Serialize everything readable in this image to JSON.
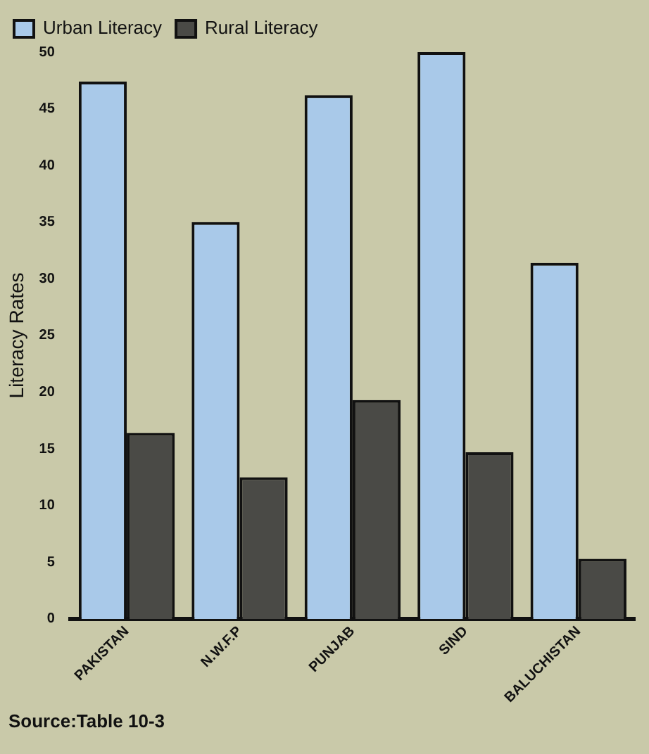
{
  "chart_data": {
    "type": "bar",
    "ylabel": "Literacy Rates",
    "categories": [
      "PAKISTAN",
      "N.W.F.P",
      "PUNJAB",
      "SIND",
      "BALUCHISTAN"
    ],
    "series": [
      {
        "name": "Urban Literacy",
        "color": "#a9c9e9",
        "values": [
          47.4,
          35.0,
          46.2,
          50.0,
          31.4
        ]
      },
      {
        "name": "Rural Literacy",
        "color": "#4a4a46",
        "values": [
          16.4,
          12.5,
          19.3,
          14.7,
          5.3
        ]
      }
    ],
    "ylim": [
      0,
      50
    ],
    "yticks": [
      0,
      5,
      10,
      15,
      20,
      25,
      30,
      35,
      40,
      45,
      50
    ],
    "grid": false,
    "legend": "top left",
    "annotations": [
      "Source:Table 10-3"
    ]
  }
}
